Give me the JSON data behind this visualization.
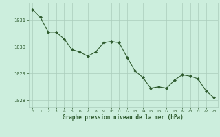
{
  "x": [
    0,
    1,
    2,
    3,
    4,
    5,
    6,
    7,
    8,
    9,
    10,
    11,
    12,
    13,
    14,
    15,
    16,
    17,
    18,
    19,
    20,
    21,
    22,
    23
  ],
  "y": [
    1031.4,
    1031.1,
    1030.55,
    1030.55,
    1030.3,
    1029.9,
    1029.8,
    1029.65,
    1029.8,
    1030.15,
    1030.2,
    1030.15,
    1029.6,
    1029.1,
    1028.85,
    1028.45,
    1028.5,
    1028.45,
    1028.75,
    1028.95,
    1028.9,
    1028.8,
    1028.35,
    1028.1
  ],
  "line_color": "#2d5a2d",
  "marker": "D",
  "marker_size": 2.0,
  "bg_color": "#cceedd",
  "grid_color": "#aaccbb",
  "tick_color": "#2d5a2d",
  "label_color": "#2d5a2d",
  "xlabel": "Graphe pression niveau de la mer (hPa)",
  "ylim": [
    1027.75,
    1031.65
  ],
  "yticks": [
    1028,
    1029,
    1030,
    1031
  ],
  "xticks": [
    0,
    1,
    2,
    3,
    4,
    5,
    6,
    7,
    8,
    9,
    10,
    11,
    12,
    13,
    14,
    15,
    16,
    17,
    18,
    19,
    20,
    21,
    22,
    23
  ]
}
